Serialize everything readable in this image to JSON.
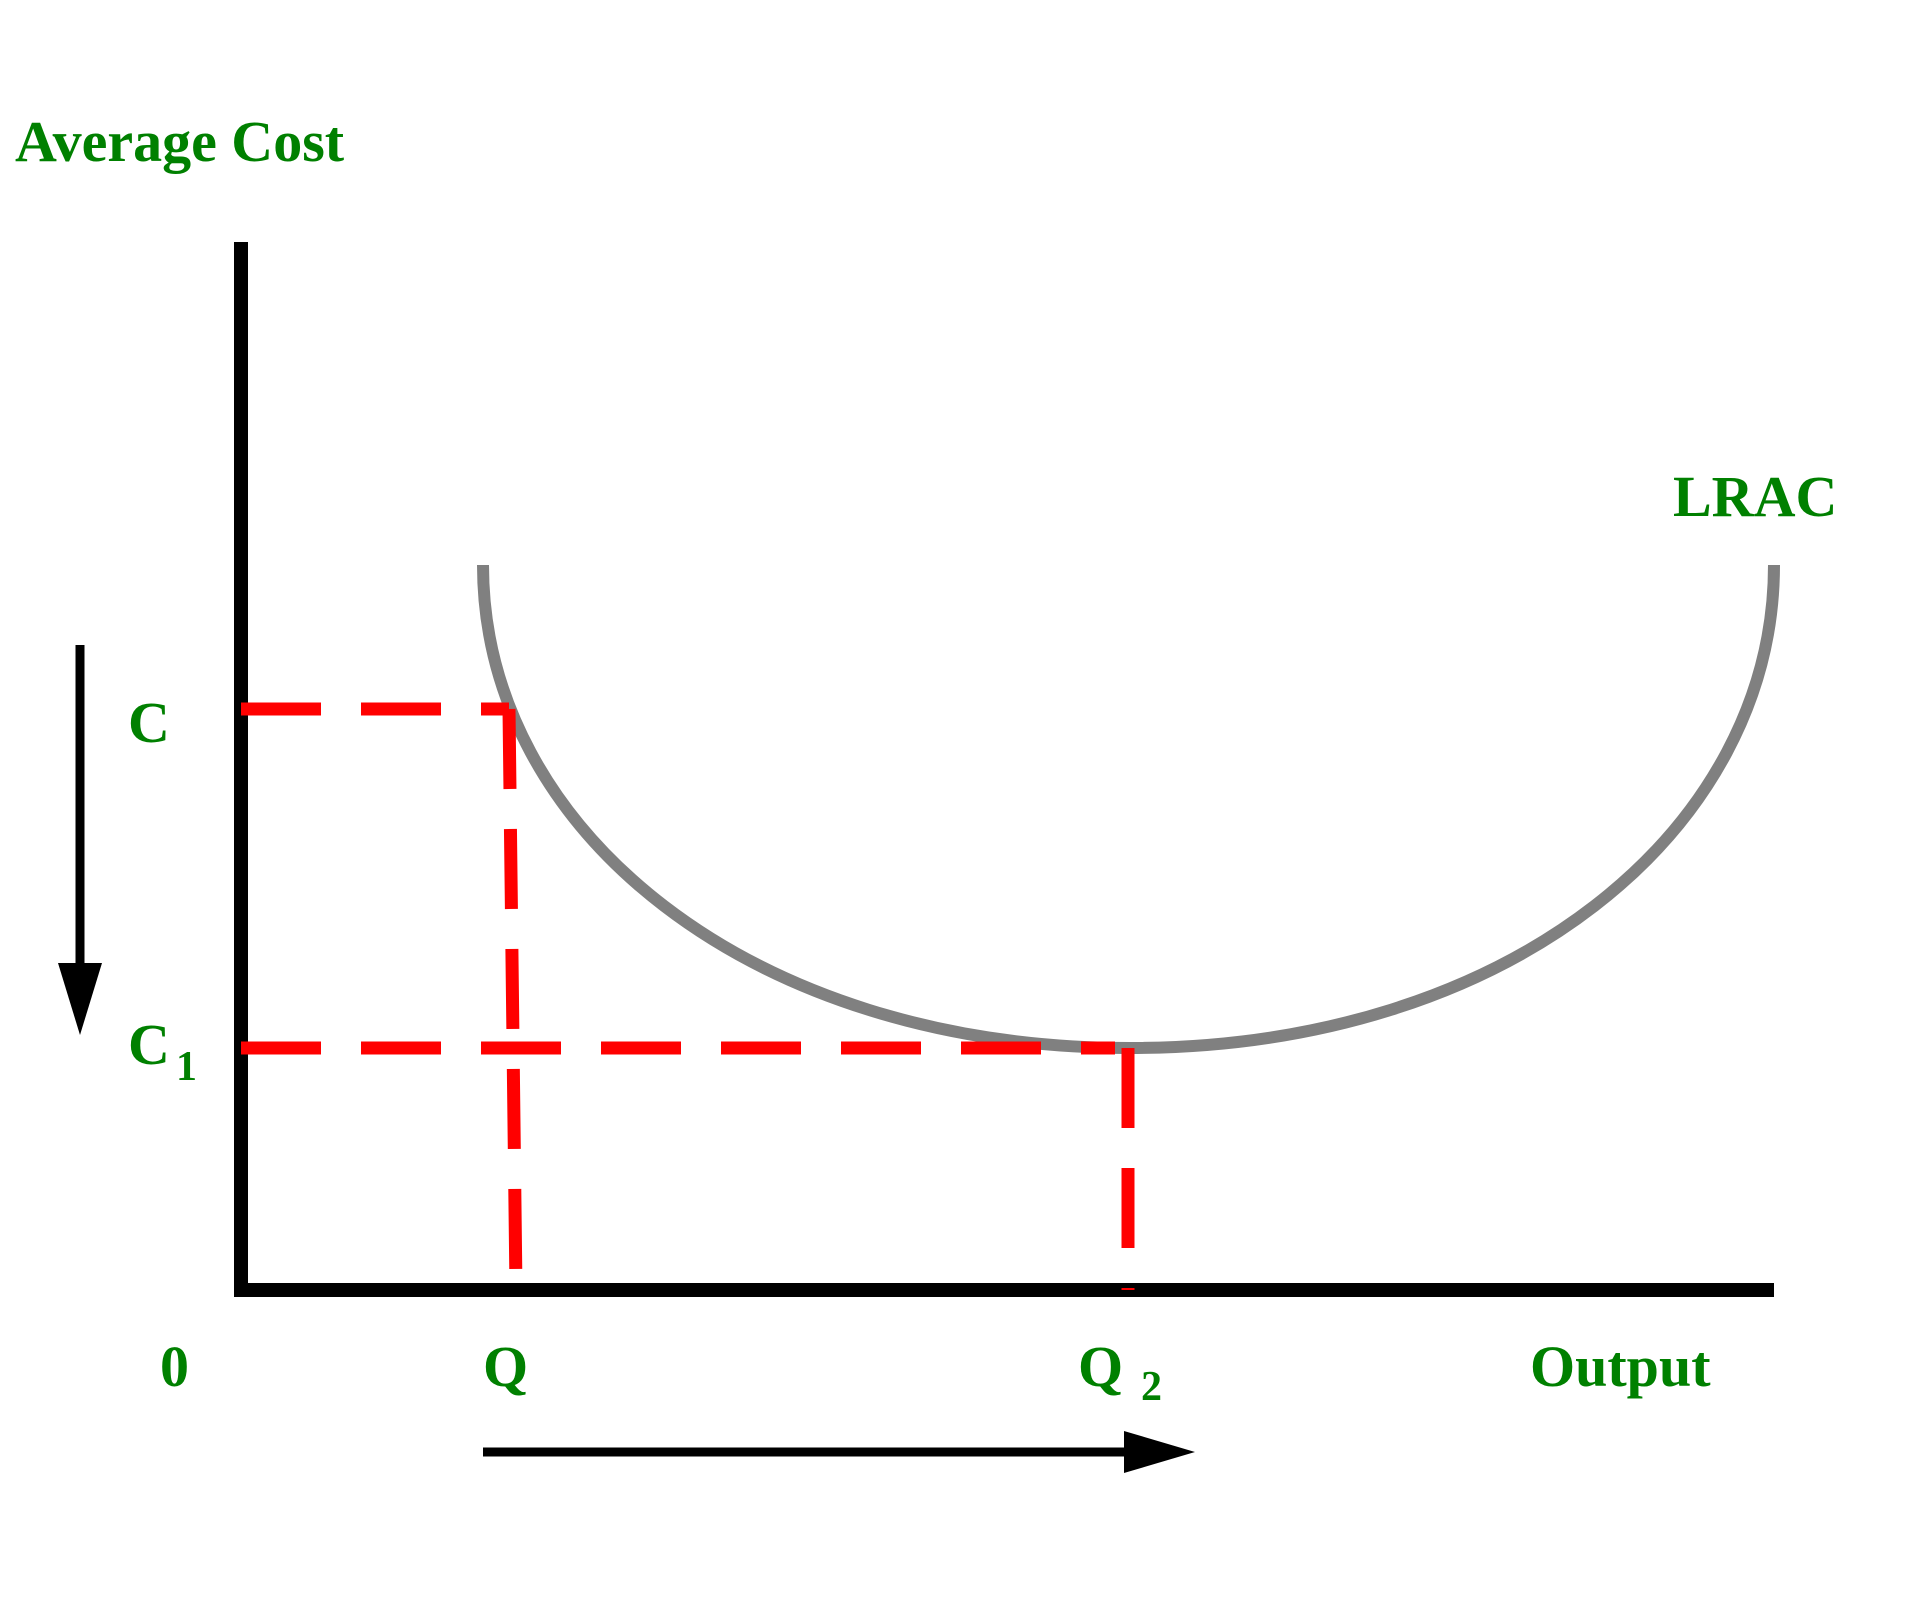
{
  "y_axis_title": "Average Cost",
  "x_axis_title": "Output",
  "curve_label": "LRAC",
  "cost_labels": {
    "c": "C",
    "c1_main": "C",
    "c1_sub": "1"
  },
  "output_labels": {
    "origin": "0",
    "q": "Q",
    "q2_main": "Q",
    "q2_sub": "2"
  },
  "colors": {
    "axis": "#000000",
    "curve": "#808080",
    "guide": "#ff0000",
    "label": "#008000",
    "arrow": "#000000"
  }
}
